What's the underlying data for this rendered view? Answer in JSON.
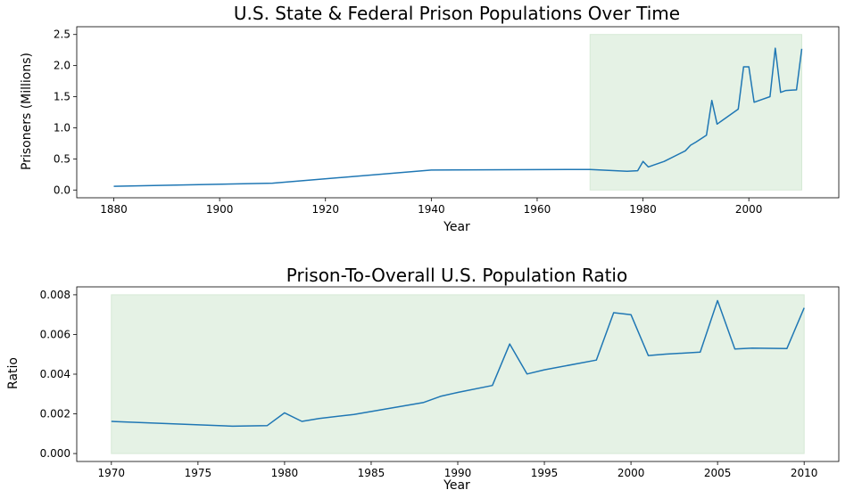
{
  "chart_data": [
    {
      "type": "line",
      "title": "U.S. State & Federal Prison Populations Over Time",
      "xlabel": "Year",
      "ylabel": "Prisoners (Millions)",
      "xlim": [
        1873,
        2017
      ],
      "ylim": [
        -0.125,
        2.625
      ],
      "xticks": [
        1880,
        1900,
        1920,
        1940,
        1960,
        1980,
        2000
      ],
      "xtick_labels": [
        "1880",
        "1900",
        "1920",
        "1940",
        "1960",
        "1980",
        "2000"
      ],
      "yticks": [
        0,
        0.5,
        1.0,
        1.5,
        2.0,
        2.5
      ],
      "ytick_labels": [
        "0.0",
        "0.5",
        "1.0",
        "1.5",
        "2.0",
        "2.5"
      ],
      "grid": false,
      "line_color": "#1f77b4",
      "highlight": {
        "x": [
          1970,
          2010
        ],
        "y": [
          0,
          2.5
        ],
        "color": "#e5f2e5",
        "edge": "#d6ead6"
      },
      "series": [
        {
          "x": [
            1880,
            1910,
            1940,
            1970,
            1977,
            1979,
            1980,
            1981,
            1982,
            1984,
            1988,
            1989,
            1990,
            1992,
            1993,
            1994,
            1995,
            1998,
            1999,
            2000,
            2001,
            2002,
            2004,
            2005,
            2006,
            2007,
            2009,
            2010
          ],
          "values": [
            0.06,
            0.11,
            0.32,
            0.33,
            0.3,
            0.31,
            0.46,
            0.37,
            0.4,
            0.46,
            0.63,
            0.72,
            0.77,
            0.88,
            1.44,
            1.06,
            1.12,
            1.3,
            1.98,
            1.98,
            1.41,
            1.44,
            1.5,
            2.28,
            1.57,
            1.6,
            1.61,
            2.27
          ]
        }
      ]
    },
    {
      "type": "line",
      "title": "Prison-To-Overall U.S. Population Ratio",
      "xlabel": "Year",
      "ylabel": "Ratio",
      "xlim": [
        1968,
        2012
      ],
      "ylim": [
        -0.0004,
        0.0084
      ],
      "xticks": [
        1970,
        1975,
        1980,
        1985,
        1990,
        1995,
        2000,
        2005,
        2010
      ],
      "xtick_labels": [
        "1970",
        "1975",
        "1980",
        "1985",
        "1990",
        "1995",
        "2000",
        "2005",
        "2010"
      ],
      "yticks": [
        0,
        0.002,
        0.004,
        0.006,
        0.008
      ],
      "ytick_labels": [
        "0.000",
        "0.002",
        "0.004",
        "0.006",
        "0.008"
      ],
      "grid": false,
      "line_color": "#1f77b4",
      "highlight": {
        "x": [
          1970,
          2010
        ],
        "y": [
          0,
          0.008
        ],
        "color": "#e5f2e5",
        "edge": "#d6ead6"
      },
      "series": [
        {
          "x": [
            1970,
            1977,
            1979,
            1980,
            1981,
            1982,
            1984,
            1988,
            1989,
            1990,
            1992,
            1993,
            1994,
            1995,
            1998,
            1999,
            2000,
            2001,
            2002,
            2004,
            2005,
            2006,
            2007,
            2009,
            2010
          ],
          "values": [
            0.00162,
            0.00138,
            0.00141,
            0.00205,
            0.00162,
            0.00177,
            0.00197,
            0.00257,
            0.00288,
            0.00308,
            0.00343,
            0.00552,
            0.00401,
            0.00422,
            0.00471,
            0.0071,
            0.007,
            0.00494,
            0.00501,
            0.00511,
            0.00771,
            0.00527,
            0.00531,
            0.00529,
            0.00734
          ]
        }
      ]
    }
  ]
}
